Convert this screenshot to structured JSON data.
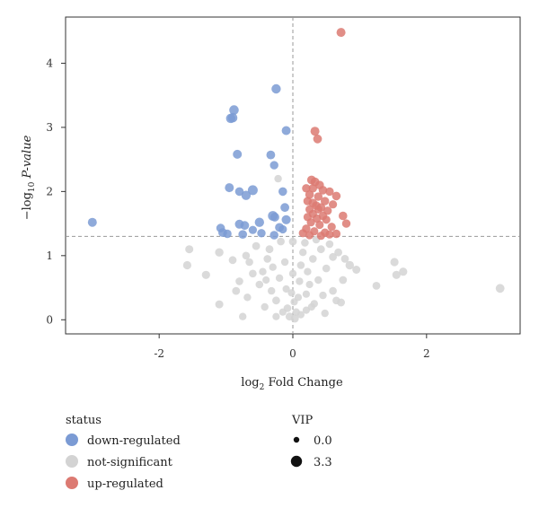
{
  "chart_data": {
    "type": "scatter",
    "title": "",
    "xlabel": {
      "prefix": "log",
      "sub": "2",
      "suffix": " Fold Change"
    },
    "ylabel": {
      "prefix": "−log",
      "sub": "10",
      "suffix": " P-value"
    },
    "xlim": [
      -3.4,
      3.4
    ],
    "ylim": [
      -0.22,
      4.72
    ],
    "x_ticks": [
      -2,
      0,
      2
    ],
    "x_tick_labels": [
      "-2",
      "0",
      "2"
    ],
    "y_ticks": [
      0,
      1,
      2,
      3,
      4
    ],
    "y_tick_labels": [
      "0",
      "1",
      "2",
      "3",
      "4"
    ],
    "threshold_lines": {
      "x": 0,
      "y": 1.3,
      "style": "dashed"
    },
    "grid": false,
    "legend_position": "bottom",
    "status_legend": {
      "title": "status",
      "items": [
        {
          "label": "down-regulated",
          "color": "#7b9bd4"
        },
        {
          "label": "not-significant",
          "color": "#d3d3d3"
        },
        {
          "label": "up-regulated",
          "color": "#dc7a72"
        }
      ]
    },
    "vip_legend": {
      "title": "VIP",
      "items": [
        {
          "label": "0.0",
          "vip": 0.0
        },
        {
          "label": "3.3",
          "vip": 3.3
        }
      ]
    },
    "series": [
      {
        "name": "down-regulated",
        "color": "#7b9bd4",
        "points": [
          [
            -0.25,
            3.6,
            2.2
          ],
          [
            -0.88,
            3.27,
            2.3
          ],
          [
            -0.9,
            3.15,
            2.3
          ],
          [
            -0.93,
            3.14,
            2.2
          ],
          [
            -0.1,
            2.95,
            2.0
          ],
          [
            -0.83,
            2.58,
            2.0
          ],
          [
            -0.33,
            2.57,
            1.9
          ],
          [
            -0.28,
            2.41,
            1.7
          ],
          [
            -3.0,
            1.52,
            2.0
          ],
          [
            -0.95,
            2.06,
            2.0
          ],
          [
            -0.6,
            2.02,
            2.5
          ],
          [
            -0.8,
            2.0,
            1.8
          ],
          [
            -0.7,
            1.94,
            2.2
          ],
          [
            -0.15,
            2.0,
            1.8
          ],
          [
            -0.12,
            1.75,
            1.9
          ],
          [
            -0.3,
            1.62,
            2.4
          ],
          [
            -0.27,
            1.6,
            2.0
          ],
          [
            -0.1,
            1.56,
            2.1
          ],
          [
            -0.5,
            1.52,
            2.2
          ],
          [
            -0.8,
            1.49,
            2.0
          ],
          [
            -0.72,
            1.47,
            1.9
          ],
          [
            -0.2,
            1.44,
            1.9
          ],
          [
            -1.08,
            1.43,
            1.8
          ],
          [
            -1.05,
            1.36,
            1.9
          ],
          [
            -0.98,
            1.34,
            1.7
          ],
          [
            -0.75,
            1.33,
            1.8
          ],
          [
            -0.47,
            1.35,
            1.7
          ],
          [
            -0.28,
            1.32,
            1.8
          ],
          [
            -0.15,
            1.41,
            1.6
          ],
          [
            -0.6,
            1.4,
            1.6
          ]
        ]
      },
      {
        "name": "not-significant",
        "color": "#d3d3d3",
        "points": [
          [
            3.1,
            0.49,
            1.9
          ],
          [
            1.52,
            0.9,
            1.6
          ],
          [
            1.65,
            0.75,
            1.5
          ],
          [
            1.55,
            0.7,
            1.5
          ],
          [
            1.25,
            0.53,
            1.3
          ],
          [
            0.85,
            0.85,
            1.7
          ],
          [
            0.95,
            0.78,
            1.4
          ],
          [
            0.75,
            0.62,
            1.3
          ],
          [
            0.72,
            0.27,
            1.3
          ],
          [
            0.6,
            0.45,
            1.2
          ],
          [
            -1.55,
            1.1,
            1.4
          ],
          [
            -1.58,
            0.85,
            1.5
          ],
          [
            -1.3,
            0.7,
            1.5
          ],
          [
            -1.1,
            0.24,
            1.4
          ],
          [
            -0.85,
            0.45,
            1.3
          ],
          [
            -1.1,
            1.05,
            1.7
          ],
          [
            -0.9,
            0.93,
            1.3
          ],
          [
            -0.75,
            0.05,
            1.1
          ],
          [
            -0.6,
            0.72,
            1.2
          ],
          [
            -0.5,
            0.55,
            1.2
          ],
          [
            -0.55,
            1.15,
            1.3
          ],
          [
            -0.38,
            0.95,
            1.2
          ],
          [
            -0.3,
            0.82,
            1.1
          ],
          [
            -0.42,
            0.2,
            1.1
          ],
          [
            -0.25,
            0.3,
            1.3
          ],
          [
            -0.35,
            1.1,
            1.3
          ],
          [
            -0.18,
            1.22,
            1.2
          ],
          [
            -0.2,
            0.65,
            1.1
          ],
          [
            -0.12,
            0.9,
            1.1
          ],
          [
            -0.1,
            0.48,
            1.0
          ],
          [
            -0.08,
            0.18,
            1.2
          ],
          [
            -0.05,
            0.05,
            1.3
          ],
          [
            0.03,
            0.02,
            1.4
          ],
          [
            0.05,
            0.12,
            1.1
          ],
          [
            0.08,
            0.35,
            1.0
          ],
          [
            0.1,
            0.6,
            1.1
          ],
          [
            0.12,
            0.85,
            1.2
          ],
          [
            0.15,
            1.05,
            1.1
          ],
          [
            0.18,
            1.2,
            1.2
          ],
          [
            0.2,
            0.4,
            1.0
          ],
          [
            0.22,
            0.75,
            1.1
          ],
          [
            0.25,
            0.55,
            1.0
          ],
          [
            0.3,
            0.95,
            1.2
          ],
          [
            0.32,
            0.25,
            1.1
          ],
          [
            0.38,
            0.62,
            1.1
          ],
          [
            0.42,
            1.1,
            1.3
          ],
          [
            0.45,
            0.38,
            1.1
          ],
          [
            0.5,
            0.8,
            1.2
          ],
          [
            0.55,
            1.18,
            1.2
          ],
          [
            0.6,
            0.98,
            1.3
          ],
          [
            0.0,
            1.22,
            1.3
          ],
          [
            0.0,
            0.72,
            1.1
          ],
          [
            -0.02,
            0.42,
            1.0
          ],
          [
            0.02,
            0.28,
            1.0
          ],
          [
            -0.15,
            0.12,
            1.0
          ],
          [
            0.12,
            0.08,
            1.0
          ],
          [
            -0.25,
            0.05,
            1.0
          ],
          [
            0.2,
            0.15,
            1.0
          ],
          [
            -0.32,
            0.45,
            1.1
          ],
          [
            0.28,
            0.2,
            1.0
          ],
          [
            -0.45,
            0.75,
            1.1
          ],
          [
            0.35,
            1.25,
            1.2
          ],
          [
            -0.65,
            0.9,
            1.2
          ],
          [
            0.68,
            1.05,
            1.3
          ],
          [
            -0.8,
            0.6,
            1.2
          ],
          [
            0.78,
            0.95,
            1.3
          ],
          [
            -0.68,
            0.35,
            1.1
          ],
          [
            0.65,
            0.3,
            1.2
          ],
          [
            -0.22,
            2.2,
            1.1
          ],
          [
            -0.7,
            1.0,
            1.2
          ],
          [
            0.48,
            0.1,
            1.1
          ],
          [
            -0.4,
            0.62,
            1.0
          ]
        ]
      },
      {
        "name": "up-regulated",
        "color": "#dc7a72",
        "points": [
          [
            0.72,
            4.48,
            2.0
          ],
          [
            0.33,
            2.94,
            2.0
          ],
          [
            0.37,
            2.82,
            1.9
          ],
          [
            0.28,
            2.18,
            1.9
          ],
          [
            0.33,
            2.15,
            1.9
          ],
          [
            0.4,
            2.1,
            1.8
          ],
          [
            0.2,
            2.05,
            1.7
          ],
          [
            0.3,
            2.05,
            1.7
          ],
          [
            0.45,
            2.02,
            1.8
          ],
          [
            0.55,
            2.0,
            1.7
          ],
          [
            0.25,
            1.95,
            1.8
          ],
          [
            0.38,
            1.92,
            1.7
          ],
          [
            0.65,
            1.93,
            1.8
          ],
          [
            0.22,
            1.85,
            1.7
          ],
          [
            0.3,
            1.82,
            1.8
          ],
          [
            0.48,
            1.85,
            1.7
          ],
          [
            0.6,
            1.8,
            1.6
          ],
          [
            0.35,
            1.78,
            1.7
          ],
          [
            0.42,
            1.75,
            1.8
          ],
          [
            0.25,
            1.72,
            1.6
          ],
          [
            0.52,
            1.7,
            1.7
          ],
          [
            0.3,
            1.65,
            1.6
          ],
          [
            0.45,
            1.62,
            1.7
          ],
          [
            0.75,
            1.62,
            1.8
          ],
          [
            0.22,
            1.6,
            1.6
          ],
          [
            0.36,
            1.58,
            1.7
          ],
          [
            0.5,
            1.56,
            1.6
          ],
          [
            0.27,
            1.52,
            1.6
          ],
          [
            0.8,
            1.5,
            1.7
          ],
          [
            0.4,
            1.48,
            1.6
          ],
          [
            0.58,
            1.45,
            1.6
          ],
          [
            0.2,
            1.42,
            1.7
          ],
          [
            0.32,
            1.38,
            1.6
          ],
          [
            0.48,
            1.36,
            1.6
          ],
          [
            0.65,
            1.34,
            1.7
          ],
          [
            0.25,
            1.32,
            1.6
          ],
          [
            0.42,
            1.31,
            1.6
          ],
          [
            0.55,
            1.33,
            1.6
          ],
          [
            0.15,
            1.35,
            1.6
          ],
          [
            0.38,
            1.72,
            1.6
          ]
        ]
      }
    ]
  }
}
